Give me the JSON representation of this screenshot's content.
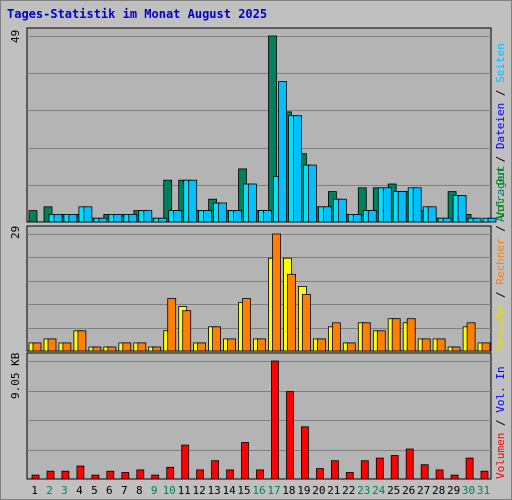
{
  "title": "Tages-Statistik im Monat August 2025",
  "colors": {
    "background": "#c0c0c0",
    "plot_bg": "#b4b4b4",
    "grid": "#808080",
    "anfragen": "#00805c",
    "dateien": "#00e0ff",
    "seiten": "#00c0ff",
    "besuche": "#ffff00",
    "rechner": "#ff8000",
    "volumen": "#ff0000",
    "weekday": "#000000",
    "weekend": "#00805c",
    "title": "#0000cc"
  },
  "legend_top": {
    "items": [
      {
        "text": "Anfragen",
        "color": "#00805c"
      },
      {
        "text": " / ",
        "color": "#000000"
      },
      {
        "text": "Dateien",
        "color": "#0000ff"
      },
      {
        "text": " / ",
        "color": "#000000"
      },
      {
        "text": "Seiten",
        "color": "#00c0ff"
      }
    ]
  },
  "legend_mid": {
    "items": [
      {
        "text": "Besuche",
        "color": "#e0e000"
      },
      {
        "text": " / ",
        "color": "#000000"
      },
      {
        "text": "Rechner",
        "color": "#ff8000"
      },
      {
        "text": " / ",
        "color": "#000000"
      },
      {
        "text": "Vol. Out",
        "color": "#008000"
      }
    ]
  },
  "legend_bot": {
    "items": [
      {
        "text": "Volumen",
        "color": "#ff0000"
      },
      {
        "text": " / ",
        "color": "#000000"
      },
      {
        "text": "Vol. In",
        "color": "#0000ff"
      }
    ]
  },
  "chart_data": {
    "type": "bar",
    "days": [
      "1",
      "2",
      "3",
      "4",
      "5",
      "6",
      "7",
      "8",
      "9",
      "10",
      "11",
      "12",
      "13",
      "14",
      "15",
      "16",
      "17",
      "18",
      "19",
      "20",
      "21",
      "22",
      "23",
      "24",
      "25",
      "26",
      "27",
      "28",
      "29",
      "30",
      "31"
    ],
    "weekend_days": [
      "2",
      "3",
      "9",
      "10",
      "16",
      "17",
      "23",
      "24",
      "30",
      "31"
    ],
    "panels": [
      {
        "ymax_label": "49",
        "ymax": 49,
        "series": [
          {
            "name": "Anfragen",
            "values": [
              3,
              4,
              2,
              2,
              1,
              2,
              2,
              3,
              1,
              11,
              11,
              3,
              6,
              3,
              14,
              3,
              49,
              29,
              18,
              4,
              8,
              2,
              9,
              9,
              10,
              8,
              3,
              1,
              8,
              2,
              0
            ]
          },
          {
            "name": "Dateien",
            "values": [
              0,
              2,
              2,
              4,
              1,
              2,
              2,
              3,
              1,
              3,
              11,
              3,
              5,
              3,
              10,
              3,
              12,
              28,
              15,
              4,
              6,
              2,
              3,
              9,
              8,
              9,
              4,
              1,
              7,
              1,
              1
            ]
          },
          {
            "name": "Seiten",
            "values": [
              0,
              2,
              2,
              4,
              1,
              2,
              2,
              3,
              1,
              3,
              11,
              3,
              5,
              3,
              10,
              3,
              37,
              28,
              15,
              4,
              6,
              2,
              3,
              9,
              8,
              9,
              4,
              1,
              7,
              1,
              1
            ]
          }
        ]
      },
      {
        "ymax_label": "29",
        "ymax": 29,
        "series": [
          {
            "name": "Besuche",
            "values": [
              2,
              3,
              2,
              5,
              1,
              1,
              2,
              2,
              1,
              5,
              11,
              2,
              6,
              3,
              12,
              3,
              23,
              23,
              16,
              3,
              6,
              2,
              7,
              5,
              8,
              7,
              3,
              3,
              1,
              6,
              2
            ]
          },
          {
            "name": "Rechner",
            "values": [
              2,
              3,
              2,
              5,
              1,
              1,
              2,
              2,
              1,
              13,
              10,
              2,
              6,
              3,
              13,
              3,
              29,
              19,
              14,
              3,
              7,
              2,
              7,
              5,
              8,
              8,
              3,
              3,
              1,
              7,
              2
            ]
          }
        ]
      },
      {
        "ymax_label": "9.05 KB",
        "ymax": 9.05,
        "series": [
          {
            "name": "Volumen",
            "values": [
              0.3,
              0.6,
              0.6,
              1.0,
              0.3,
              0.6,
              0.5,
              0.7,
              0.3,
              0.9,
              2.6,
              0.7,
              1.4,
              0.7,
              2.8,
              0.7,
              9.05,
              6.7,
              4.0,
              0.8,
              1.4,
              0.5,
              1.4,
              1.6,
              1.8,
              2.3,
              1.1,
              0.7,
              0.3,
              1.6,
              0.6
            ]
          }
        ]
      }
    ]
  }
}
